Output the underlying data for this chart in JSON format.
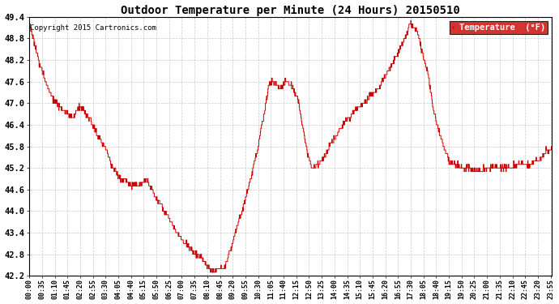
{
  "title": "Outdoor Temperature per Minute (24 Hours) 20150510",
  "copyright": "Copyright 2015 Cartronics.com",
  "legend_label": "Temperature  (°F)",
  "ylim": [
    42.2,
    49.4
  ],
  "yticks": [
    42.2,
    42.8,
    43.4,
    44.0,
    44.6,
    45.2,
    45.8,
    46.4,
    47.0,
    47.6,
    48.2,
    48.8,
    49.4
  ],
  "line_color": "#cc0000",
  "bg_color": "#ffffff",
  "grid_color": "#bbbbbb",
  "legend_bg": "#cc0000",
  "legend_text_color": "#ffffff",
  "xtick_step_minutes": 35,
  "figwidth": 6.9,
  "figheight": 3.75,
  "dpi": 100
}
